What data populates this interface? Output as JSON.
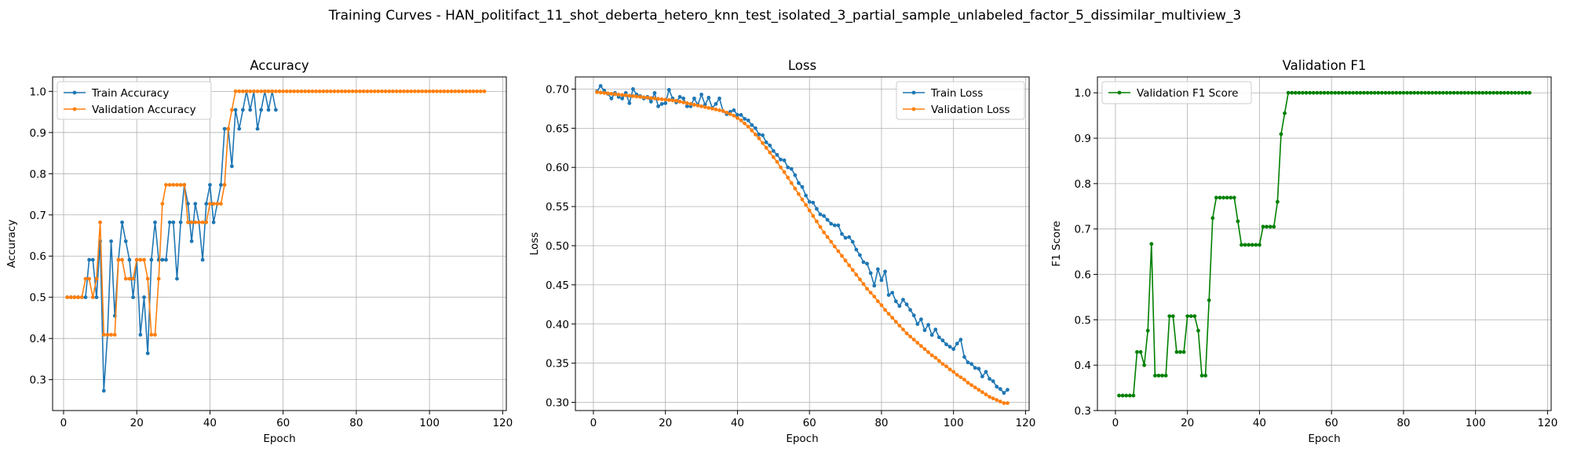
{
  "figure": {
    "suptitle": "Training Curves - HAN_politifact_11_shot_deberta_hetero_knn_test_isolated_3_partial_sample_unlabeled_factor_5_dissimilar_multiview_3"
  },
  "colors": {
    "blue": "#1f77b4",
    "orange": "#ff7f0e",
    "green": "#008000",
    "grid": "#b0b0b0"
  },
  "chart_data": [
    {
      "type": "line",
      "title": "Accuracy",
      "xlabel": "Epoch",
      "ylabel": "Accuracy",
      "xlim": [
        -3,
        121
      ],
      "ylim": [
        0.225,
        1.035
      ],
      "xticks": [
        0,
        20,
        40,
        60,
        80,
        100,
        120
      ],
      "yticks": [
        0.3,
        0.4,
        0.5,
        0.6,
        0.7,
        0.8,
        0.9,
        1.0
      ],
      "ytick_labels": [
        "0.3",
        "0.4",
        "0.5",
        "0.6",
        "0.7",
        "0.8",
        "0.9",
        "1.0"
      ],
      "grid": true,
      "legend_position": "upper-left",
      "series": [
        {
          "name": "Train Accuracy",
          "color": "#1f77b4",
          "start_x": 1,
          "end_x": 58,
          "values": [
            0.5,
            0.5,
            0.5,
            0.5,
            0.5,
            0.5,
            0.591,
            0.591,
            0.5,
            0.636,
            0.273,
            0.409,
            0.636,
            0.455,
            0.591,
            0.682,
            0.636,
            0.591,
            0.5,
            0.591,
            0.409,
            0.5,
            0.364,
            0.591,
            0.682,
            0.591,
            0.591,
            0.591,
            0.682,
            0.682,
            0.545,
            0.682,
            0.773,
            0.727,
            0.636,
            0.727,
            0.682,
            0.591,
            0.727,
            0.773,
            0.682,
            0.727,
            0.773,
            0.909,
            0.909,
            0.818,
            0.955,
            0.909,
            0.955,
            1.0,
            0.955,
            1.0,
            0.909,
            0.955,
            1.0,
            0.955,
            1.0,
            0.955
          ]
        },
        {
          "name": "Validation Accuracy",
          "color": "#ff7f0e",
          "start_x": 1,
          "end_x": 115,
          "values": [
            0.5,
            0.5,
            0.5,
            0.5,
            0.5,
            0.545,
            0.545,
            0.5,
            0.545,
            0.682,
            0.409,
            0.409,
            0.409,
            0.409,
            0.591,
            0.591,
            0.545,
            0.545,
            0.545,
            0.591,
            0.591,
            0.591,
            0.545,
            0.409,
            0.409,
            0.545,
            0.727,
            0.773,
            0.773,
            0.773,
            0.773,
            0.773,
            0.773,
            0.682,
            0.682,
            0.682,
            0.682,
            0.682,
            0.682,
            0.727,
            0.727,
            0.727,
            0.727,
            0.773,
            0.909,
            0.955,
            1.0
          ],
          "then_constant": 1.0
        }
      ]
    },
    {
      "type": "line",
      "title": "Loss",
      "xlabel": "Epoch",
      "ylabel": "Loss",
      "xlim": [
        -5,
        121
      ],
      "ylim": [
        0.2895,
        0.7155
      ],
      "xticks": [
        0,
        20,
        40,
        60,
        80,
        100,
        120
      ],
      "yticks": [
        0.3,
        0.35,
        0.4,
        0.45,
        0.5,
        0.55,
        0.6,
        0.65,
        0.7
      ],
      "ytick_labels": [
        "0.30",
        "0.35",
        "0.40",
        "0.45",
        "0.50",
        "0.55",
        "0.60",
        "0.65",
        "0.70"
      ],
      "grid": true,
      "legend_position": "upper-right",
      "series": [
        {
          "name": "Train Loss",
          "color": "#1f77b4",
          "start_x": 1,
          "end_x": 115,
          "values": [
            0.697,
            0.704,
            0.698,
            0.694,
            0.688,
            0.695,
            0.69,
            0.688,
            0.695,
            0.682,
            0.7,
            0.693,
            0.691,
            0.688,
            0.69,
            0.684,
            0.695,
            0.678,
            0.681,
            0.682,
            0.699,
            0.688,
            0.683,
            0.69,
            0.688,
            0.678,
            0.678,
            0.688,
            0.68,
            0.693,
            0.68,
            0.689,
            0.676,
            0.681,
            0.688,
            0.672,
            0.668,
            0.671,
            0.673,
            0.667,
            0.667,
            0.662,
            0.66,
            0.654,
            0.65,
            0.642,
            0.641,
            0.632,
            0.628,
            0.621,
            0.616,
            0.61,
            0.609,
            0.6,
            0.598,
            0.59,
            0.58,
            0.575,
            0.564,
            0.556,
            0.555,
            0.547,
            0.54,
            0.538,
            0.533,
            0.528,
            0.526,
            0.526,
            0.515,
            0.51,
            0.511,
            0.505,
            0.495,
            0.488,
            0.479,
            0.477,
            0.465,
            0.449,
            0.47,
            0.456,
            0.467,
            0.437,
            0.44,
            0.429,
            0.423,
            0.431,
            0.425,
            0.418,
            0.411,
            0.4,
            0.406,
            0.392,
            0.399,
            0.386,
            0.393,
            0.383,
            0.379,
            0.374,
            0.371,
            0.368,
            0.375,
            0.38,
            0.358,
            0.351,
            0.349,
            0.344,
            0.343,
            0.333,
            0.339,
            0.33,
            0.327,
            0.32,
            0.317,
            0.312,
            0.316
          ]
        },
        {
          "name": "Validation Loss",
          "color": "#ff7f0e",
          "start_x": 1,
          "end_x": 115,
          "values": [
            0.696,
            0.6955,
            0.695,
            0.6945,
            0.694,
            0.6935,
            0.693,
            0.6925,
            0.692,
            0.6915,
            0.691,
            0.6905,
            0.69,
            0.6895,
            0.689,
            0.6885,
            0.688,
            0.6875,
            0.687,
            0.6865,
            0.686,
            0.6855,
            0.685,
            0.684,
            0.683,
            0.682,
            0.681,
            0.68,
            0.679,
            0.678,
            0.677,
            0.676,
            0.675,
            0.674,
            0.673,
            0.672,
            0.67,
            0.668,
            0.666,
            0.663,
            0.66,
            0.656,
            0.652,
            0.647,
            0.642,
            0.637,
            0.631,
            0.625,
            0.619,
            0.613,
            0.607,
            0.6,
            0.594,
            0.587,
            0.58,
            0.573,
            0.566,
            0.559,
            0.552,
            0.545,
            0.538,
            0.531,
            0.524,
            0.517,
            0.511,
            0.505,
            0.499,
            0.493,
            0.487,
            0.481,
            0.475,
            0.469,
            0.463,
            0.457,
            0.451,
            0.445,
            0.44,
            0.435,
            0.429,
            0.424,
            0.418,
            0.413,
            0.408,
            0.403,
            0.398,
            0.393,
            0.388,
            0.384,
            0.38,
            0.376,
            0.372,
            0.368,
            0.364,
            0.36,
            0.357,
            0.353,
            0.349,
            0.346,
            0.342,
            0.339,
            0.335,
            0.332,
            0.329,
            0.325,
            0.322,
            0.319,
            0.316,
            0.313,
            0.31,
            0.307,
            0.305,
            0.303,
            0.301,
            0.299,
            0.299
          ]
        }
      ]
    },
    {
      "type": "line",
      "title": "Validation F1",
      "xlabel": "Epoch",
      "ylabel": "F1 Score",
      "xlim": [
        -5,
        121
      ],
      "ylim": [
        0.3,
        1.035
      ],
      "xticks": [
        0,
        20,
        40,
        60,
        80,
        100,
        120
      ],
      "yticks": [
        0.3,
        0.4,
        0.5,
        0.6,
        0.7,
        0.8,
        0.9,
        1.0
      ],
      "ytick_labels": [
        "0.3",
        "0.4",
        "0.5",
        "0.6",
        "0.7",
        "0.8",
        "0.9",
        "1.0"
      ],
      "grid": true,
      "legend_position": "upper-left",
      "series": [
        {
          "name": "Validation F1 Score",
          "color": "#008000",
          "start_x": 1,
          "end_x": 115,
          "values": [
            0.333,
            0.333,
            0.333,
            0.333,
            0.333,
            0.429,
            0.429,
            0.4,
            0.476,
            0.667,
            0.377,
            0.377,
            0.377,
            0.377,
            0.508,
            0.508,
            0.429,
            0.429,
            0.429,
            0.508,
            0.508,
            0.508,
            0.476,
            0.377,
            0.377,
            0.543,
            0.724,
            0.769,
            0.769,
            0.769,
            0.769,
            0.769,
            0.769,
            0.717,
            0.665,
            0.665,
            0.665,
            0.665,
            0.665,
            0.665,
            0.705,
            0.705,
            0.705,
            0.705,
            0.76,
            0.909,
            0.955,
            1.0
          ],
          "then_constant": 1.0
        }
      ]
    }
  ]
}
